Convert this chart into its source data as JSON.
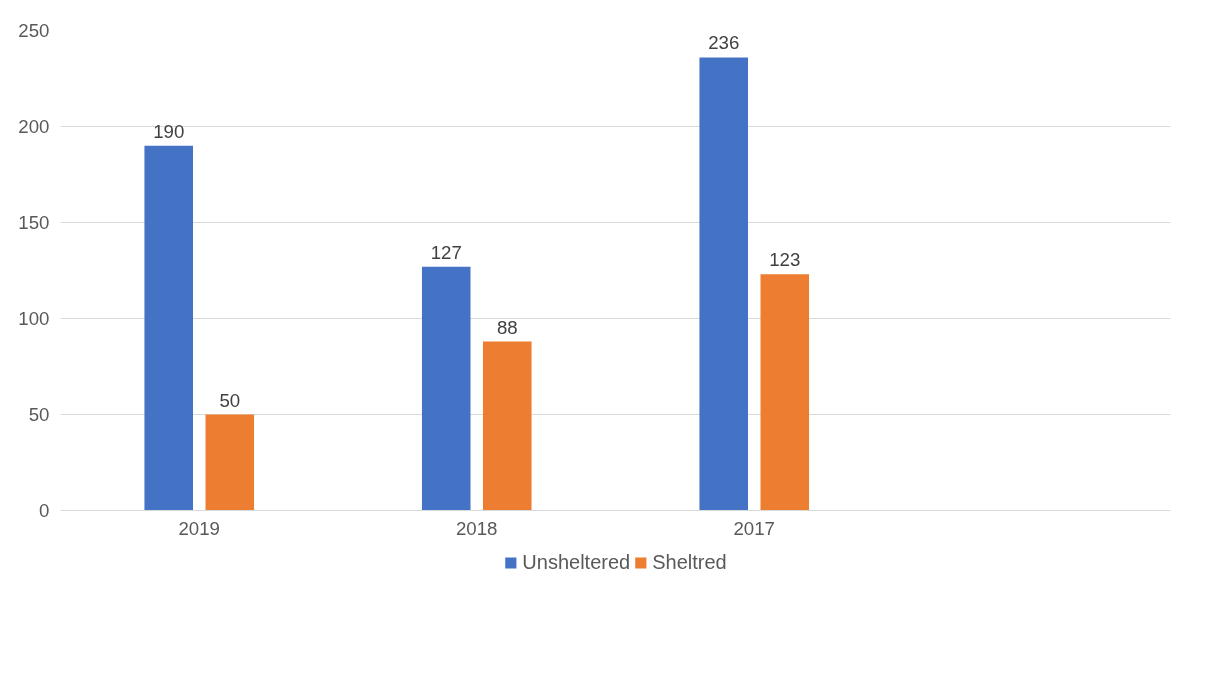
{
  "chart_data": {
    "type": "bar",
    "categories": [
      "2019",
      "2018",
      "2017",
      null
    ],
    "series": [
      {
        "name": "Unsheltered",
        "color": "#4472c4",
        "values": [
          190,
          127,
          236,
          null
        ]
      },
      {
        "name": "Sheltred",
        "color": "#ed7d31",
        "values": [
          50,
          88,
          123,
          null
        ]
      }
    ],
    "ylim": [
      0,
      250
    ],
    "yticks": [
      0,
      50,
      100,
      150,
      200,
      250
    ],
    "grid": "y",
    "legend": "bottom",
    "data_labels": true
  }
}
